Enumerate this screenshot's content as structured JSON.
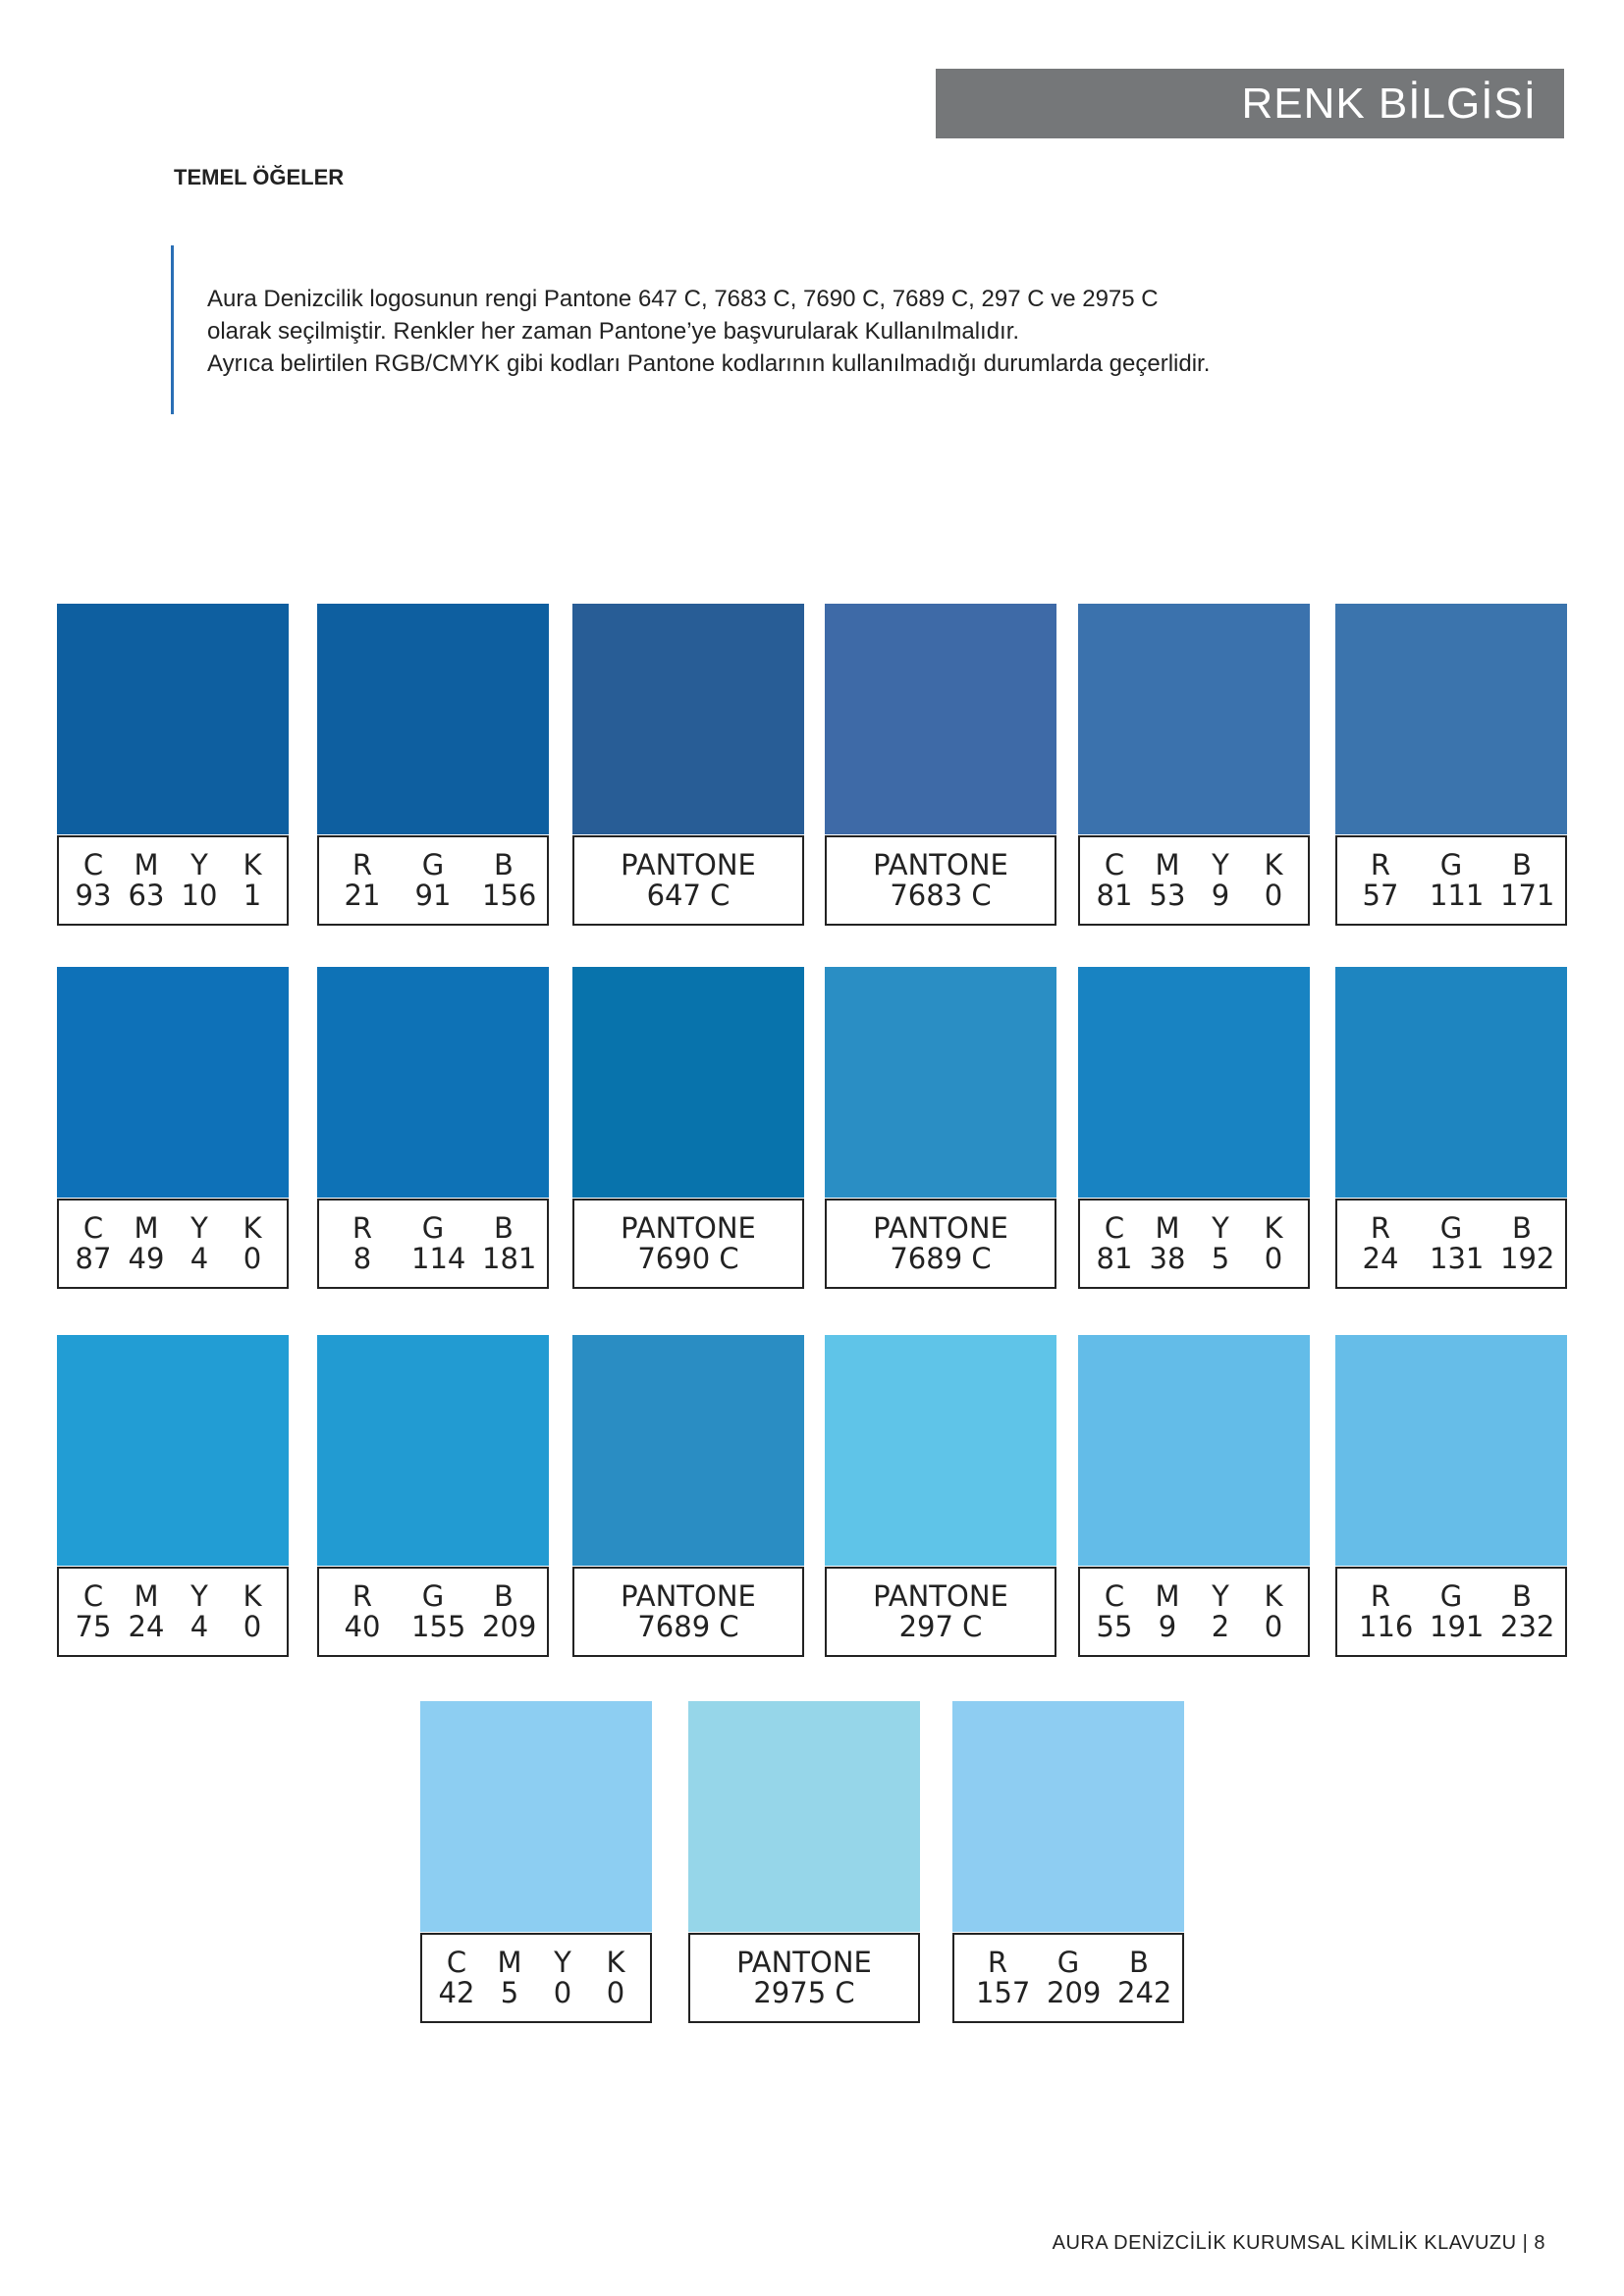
{
  "header": {
    "title": "RENK BİLGİSİ"
  },
  "section": {
    "title": "TEMEL ÖĞELER"
  },
  "intro": {
    "line1": "Aura Denizcilik logosunun rengi Pantone 647 C, 7683 C, 7690 C, 7689 C, 297 C ve 2975 C",
    "line2": "olarak seçilmiştir. Renkler her zaman Pantone’ye başvurularak Kullanılmalıdır.",
    "line3": "Ayrıca belirtilen RGB/CMYK gibi kodları Pantone kodlarının kullanılmadığı durumlarda geçerlidir."
  },
  "swatches": [
    {
      "color": "#0e5fa0",
      "type": "cmyk",
      "headers": [
        "C",
        "M",
        "Y",
        "K"
      ],
      "values": [
        "93",
        "63",
        "10",
        "1"
      ]
    },
    {
      "color": "#0e5fa0",
      "type": "rgb",
      "headers": [
        "R",
        "G",
        "B"
      ],
      "values": [
        "21",
        "91",
        "156"
      ]
    },
    {
      "color": "#285d96",
      "type": "pantone",
      "label": "PANTONE",
      "code": "647 C"
    },
    {
      "color": "#3e6aa7",
      "type": "pantone",
      "label": "PANTONE",
      "code": "7683 C"
    },
    {
      "color": "#3b72ad",
      "type": "cmyk",
      "headers": [
        "C",
        "M",
        "Y",
        "K"
      ],
      "values": [
        "81",
        "53",
        "9",
        "0"
      ]
    },
    {
      "color": "#3b74ad",
      "type": "rgb",
      "headers": [
        "R",
        "G",
        "B"
      ],
      "values": [
        "57",
        "111",
        "171"
      ]
    },
    {
      "color": "#0e71b8",
      "type": "cmyk",
      "headers": [
        "C",
        "M",
        "Y",
        "K"
      ],
      "values": [
        "87",
        "49",
        "4",
        "0"
      ]
    },
    {
      "color": "#0e72b6",
      "type": "rgb",
      "headers": [
        "R",
        "G",
        "B"
      ],
      "values": [
        "8",
        "114",
        "181"
      ]
    },
    {
      "color": "#0873ac",
      "type": "pantone",
      "label": "PANTONE",
      "code": "7690 C"
    },
    {
      "color": "#2a8ec4",
      "type": "pantone",
      "label": "PANTONE",
      "code": "7689 C"
    },
    {
      "color": "#1883c2",
      "type": "cmyk",
      "headers": [
        "C",
        "M",
        "Y",
        "K"
      ],
      "values": [
        "81",
        "38",
        "5",
        "0"
      ]
    },
    {
      "color": "#1e85c0",
      "type": "rgb",
      "headers": [
        "R",
        "G",
        "B"
      ],
      "values": [
        "24",
        "131",
        "192"
      ]
    },
    {
      "color": "#229dd4",
      "type": "cmyk",
      "headers": [
        "C",
        "M",
        "Y",
        "K"
      ],
      "values": [
        "75",
        "24",
        "4",
        "0"
      ]
    },
    {
      "color": "#229bd2",
      "type": "rgb",
      "headers": [
        "R",
        "G",
        "B"
      ],
      "values": [
        "40",
        "155",
        "209"
      ]
    },
    {
      "color": "#2a8dc3",
      "type": "pantone",
      "label": "PANTONE",
      "code": "7689 C"
    },
    {
      "color": "#5fc4e8",
      "type": "pantone",
      "label": "PANTONE",
      "code": "297 C"
    },
    {
      "color": "#63bce8",
      "type": "cmyk",
      "headers": [
        "C",
        "M",
        "Y",
        "K"
      ],
      "values": [
        "55",
        "9",
        "2",
        "0"
      ]
    },
    {
      "color": "#66bde8",
      "type": "rgb",
      "headers": [
        "R",
        "G",
        "B"
      ],
      "values": [
        "116",
        "191",
        "232"
      ]
    },
    {
      "color": "#8dcef2",
      "type": "cmyk",
      "headers": [
        "C",
        "M",
        "Y",
        "K"
      ],
      "values": [
        "42",
        "5",
        "0",
        "0"
      ]
    },
    {
      "color": "#96d6e9",
      "type": "pantone",
      "label": "PANTONE",
      "code": "2975 C"
    },
    {
      "color": "#8ecdf2",
      "type": "rgb",
      "headers": [
        "R",
        "G",
        "B"
      ],
      "values": [
        "157",
        "209",
        "242"
      ]
    }
  ],
  "footer": {
    "text": "AURA DENİZCİLİK KURUMSAL KİMLİK KLAVUZU | 8"
  }
}
